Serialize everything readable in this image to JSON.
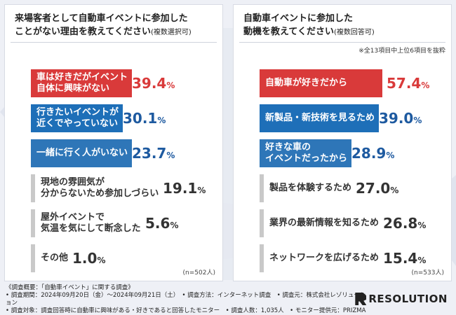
{
  "colors": {
    "red": "#d93a3a",
    "blue": "#1e6fb8",
    "dblue": "#2e76b8",
    "gray": "#c9c9c9",
    "value_red": "#d93a3a",
    "value_blue": "#1e5aa0",
    "value_gray": "#333333"
  },
  "chart_data": [
    {
      "type": "bar",
      "title": "来場客者として自動車イベントに参加したことがない理由を教えてください",
      "title_line1": "来場客者として自動車イベントに参加した",
      "title_line2": "ことがない理由を教えてください",
      "subtitle": "(複数選択可)",
      "categories": [
        "車は好きだがイベント自体に興味がない",
        "行きたいイベントが近くでやっていない",
        "一緒に行く人がいない",
        "現地の雰囲気が分からないため参加しづらい",
        "屋外イベントで気温を気にして断念した",
        "その他"
      ],
      "label_lines": [
        [
          "車は好きだがイベント",
          "自体に興味がない"
        ],
        [
          "行きたいイベントが",
          "近くでやっていない"
        ],
        [
          "一緒に行く人がいない"
        ],
        [
          "現地の雰囲気が",
          "分からないため参加しづらい"
        ],
        [
          "屋外イベントで",
          "気温を気にして断念した"
        ],
        [
          "その他"
        ]
      ],
      "values": [
        39.4,
        30.1,
        23.7,
        19.1,
        5.6,
        1.0
      ],
      "value_text": [
        "39.4",
        "30.1",
        "23.7",
        "19.1",
        "5.6",
        "1.0"
      ],
      "styles": [
        "red",
        "blue",
        "dblue",
        "gray",
        "gray",
        "gray"
      ],
      "n_label": "(n=502人)",
      "xlim": [
        0,
        57.4
      ]
    },
    {
      "type": "bar",
      "title": "自動車イベントに参加した動機を教えてください",
      "title_line1": "自動車イベントに参加した",
      "title_line2": "動機を教えてください",
      "subtitle": "(複数回答可)",
      "note": "※全13項目中上位6項目を抜粋",
      "categories": [
        "自動車が好きだから",
        "新製品・新技術を見るため",
        "好きな車のイベントだったから",
        "製品を体験するため",
        "業界の最新情報を知るため",
        "ネットワークを広げるため"
      ],
      "label_lines": [
        [
          "自動車が好きだから"
        ],
        [
          "新製品・新技術を見るため"
        ],
        [
          "好きな車の",
          "イベントだったから"
        ],
        [
          "製品を体験するため"
        ],
        [
          "業界の最新情報を知るため"
        ],
        [
          "ネットワークを広げるため"
        ]
      ],
      "values": [
        57.4,
        39.0,
        28.9,
        27.0,
        26.8,
        15.4
      ],
      "value_text": [
        "57.4",
        "39.0",
        "28.9",
        "27.0",
        "26.8",
        "15.4"
      ],
      "styles": [
        "red",
        "blue",
        "dblue",
        "gray",
        "gray",
        "gray"
      ],
      "n_label": "(n=533人)",
      "xlim": [
        0,
        57.4
      ]
    }
  ],
  "pct_sign": "%",
  "footer": {
    "line1": "《調査概要：「自動車イベント」に関する調査》",
    "line2": "• 調査期間：2024年09月20日（金）～2024年09月21日（土）　• 調査方法：インターネット調査　• 調査元：株式会社レゾリューション",
    "line3": "• 調査対象：調査回答時に自動車に興味がある・好きであると回答したモニター　• 調査人数：1,035人　• モニター提供元：PRIZMAリサーチ"
  },
  "logo": {
    "text": "RESOLUTION"
  }
}
